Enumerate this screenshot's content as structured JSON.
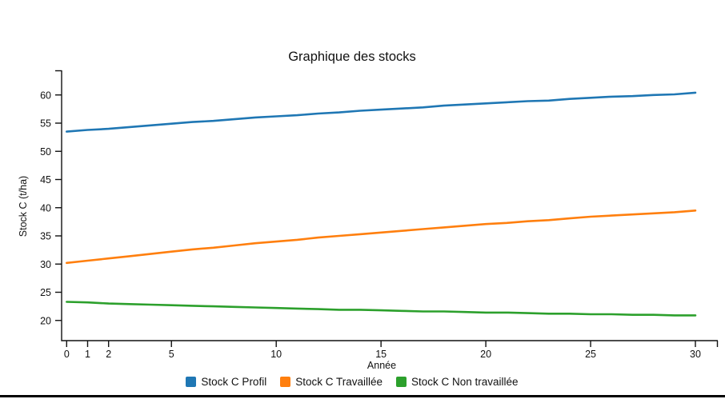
{
  "chart": {
    "title": "Graphique des stocks",
    "x_label": "Année",
    "y_label": "Stock C (t/ha)"
  },
  "chart_data": {
    "type": "line",
    "title": "Graphique des stocks",
    "xlabel": "Année",
    "ylabel": "Stock C (t/ha)",
    "grid": false,
    "legend_position": "bottom",
    "xlim": [
      -0.25,
      31.1
    ],
    "ylim": [
      16.4,
      64.4
    ],
    "x_ticks": [
      0,
      1,
      2,
      5,
      10,
      15,
      20,
      25,
      30
    ],
    "y_ticks": [
      20,
      25,
      30,
      35,
      40,
      45,
      50,
      55,
      60
    ],
    "x": [
      0,
      1,
      2,
      3,
      4,
      5,
      6,
      7,
      8,
      9,
      10,
      11,
      12,
      13,
      14,
      15,
      16,
      17,
      18,
      19,
      20,
      21,
      22,
      23,
      24,
      25,
      26,
      27,
      28,
      29,
      30
    ],
    "series": [
      {
        "name": "Stock C Profil",
        "color": "#1f77b4",
        "values": [
          53.5,
          53.8,
          54.0,
          54.3,
          54.6,
          54.9,
          55.2,
          55.4,
          55.7,
          56.0,
          56.2,
          56.4,
          56.7,
          56.9,
          57.2,
          57.4,
          57.6,
          57.8,
          58.1,
          58.3,
          58.5,
          58.7,
          58.9,
          59.0,
          59.3,
          59.5,
          59.7,
          59.8,
          60.0,
          60.1,
          60.4
        ]
      },
      {
        "name": "Stock C Travaillée",
        "color": "#ff7f0e",
        "values": [
          30.2,
          30.6,
          31.0,
          31.4,
          31.8,
          32.2,
          32.6,
          32.9,
          33.3,
          33.7,
          34.0,
          34.3,
          34.7,
          35.0,
          35.3,
          35.6,
          35.9,
          36.2,
          36.5,
          36.8,
          37.1,
          37.3,
          37.6,
          37.8,
          38.1,
          38.4,
          38.6,
          38.8,
          39.0,
          39.2,
          39.5
        ]
      },
      {
        "name": "Stock C Non travaillée",
        "color": "#2ca02c",
        "values": [
          23.3,
          23.2,
          23.0,
          22.9,
          22.8,
          22.7,
          22.6,
          22.5,
          22.4,
          22.3,
          22.2,
          22.1,
          22.0,
          21.9,
          21.9,
          21.8,
          21.7,
          21.6,
          21.6,
          21.5,
          21.4,
          21.4,
          21.3,
          21.2,
          21.2,
          21.1,
          21.1,
          21.0,
          21.0,
          20.9,
          20.9
        ]
      }
    ]
  },
  "page": {
    "bottom_bar_color": "#000000"
  }
}
